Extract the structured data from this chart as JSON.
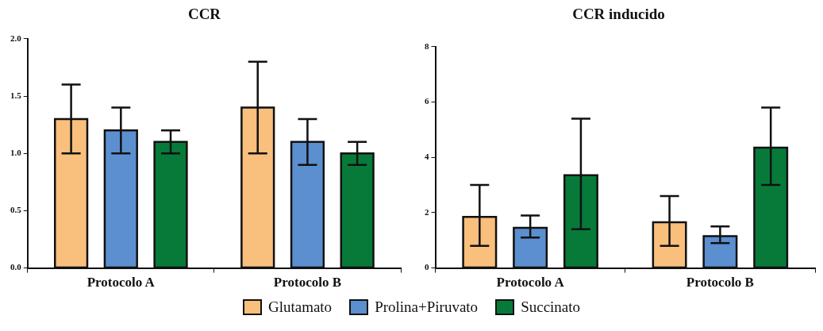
{
  "chart_data": [
    {
      "type": "bar",
      "title": "CCR",
      "categories": [
        "Protocolo A",
        "Protocolo B"
      ],
      "series": [
        {
          "name": "Glutamato",
          "color": "#f9bf7c",
          "values": [
            1.3,
            1.4
          ],
          "errors": [
            [
              1.0,
              1.6
            ],
            [
              1.0,
              1.8
            ]
          ]
        },
        {
          "name": "Prolina+Piruvato",
          "color": "#5b8fcf",
          "values": [
            1.2,
            1.1
          ],
          "errors": [
            [
              1.0,
              1.4
            ],
            [
              0.9,
              1.3
            ]
          ]
        },
        {
          "name": "Succinato",
          "color": "#077a3a",
          "values": [
            1.1,
            1.0
          ],
          "errors": [
            [
              1.0,
              1.2
            ],
            [
              0.9,
              1.1
            ]
          ]
        }
      ],
      "ylim": [
        0,
        2
      ],
      "yticks": [
        {
          "value": 0,
          "label": "0.0"
        },
        0.5,
        {
          "value": 1,
          "label": "1.0"
        },
        1.5,
        {
          "value": 2,
          "label": "2.0"
        }
      ],
      "legend": "bottom"
    },
    {
      "type": "bar",
      "title": "CCR inducido",
      "categories": [
        "Protocolo A",
        "Protocolo B"
      ],
      "series": [
        {
          "color": "#f9bf7c",
          "values": [
            1.85,
            1.65
          ],
          "errors": [
            [
              0.8,
              3.0
            ],
            [
              0.8,
              2.6
            ]
          ]
        },
        {
          "color": "#5b8fcf",
          "values": [
            1.45,
            1.15
          ],
          "errors": [
            [
              1.1,
              1.9
            ],
            [
              0.9,
              1.5
            ]
          ]
        },
        {
          "color": "#077a3a",
          "values": [
            3.35,
            4.35
          ],
          "errors": [
            [
              1.4,
              5.4
            ],
            [
              3.0,
              5.8
            ]
          ]
        }
      ],
      "ylim": [
        0,
        8
      ],
      "yticks": [
        0,
        2,
        4,
        6,
        8
      ]
    }
  ]
}
